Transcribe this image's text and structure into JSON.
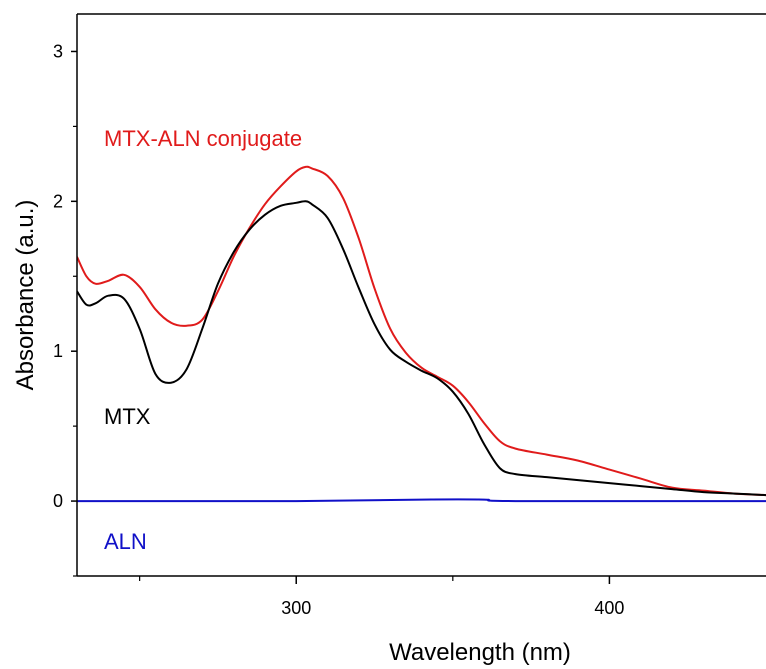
{
  "chart_data": {
    "type": "line",
    "title": "",
    "xlabel": "Wavelength (nm)",
    "ylabel": "Absorbance (a.u.)",
    "xlim": [
      230,
      450
    ],
    "ylim": [
      -0.5,
      3.25
    ],
    "x_ticks_major": [
      300,
      400
    ],
    "x_ticks_minor": [
      250,
      350
    ],
    "y_ticks_major": [
      0,
      1,
      2,
      3
    ],
    "y_ticks_minor": [
      -0.5,
      0.5,
      1.5,
      2.5
    ],
    "grid": false,
    "colors": {
      "mtx_aln": "#e01b1b",
      "mtx": "#000000",
      "aln": "#1010c8"
    },
    "series": [
      {
        "name": "MTX-ALN conjugate",
        "color": "#e01b1b",
        "x": [
          230,
          233,
          236,
          240,
          245,
          250,
          255,
          260,
          265,
          270,
          275,
          280,
          285,
          290,
          295,
          300,
          303,
          305,
          310,
          315,
          320,
          325,
          330,
          335,
          340,
          345,
          350,
          355,
          360,
          365,
          370,
          380,
          390,
          400,
          410,
          420,
          430,
          440,
          450
        ],
        "y": [
          1.63,
          1.5,
          1.45,
          1.47,
          1.51,
          1.43,
          1.28,
          1.19,
          1.17,
          1.21,
          1.4,
          1.63,
          1.82,
          1.98,
          2.1,
          2.2,
          2.23,
          2.22,
          2.17,
          2.02,
          1.75,
          1.42,
          1.15,
          0.99,
          0.89,
          0.83,
          0.77,
          0.66,
          0.52,
          0.4,
          0.35,
          0.31,
          0.27,
          0.21,
          0.15,
          0.09,
          0.07,
          0.05,
          0.04
        ]
      },
      {
        "name": "MTX",
        "color": "#000000",
        "x": [
          230,
          233,
          236,
          240,
          245,
          250,
          255,
          260,
          265,
          270,
          275,
          280,
          285,
          290,
          295,
          300,
          303,
          305,
          310,
          315,
          320,
          325,
          330,
          335,
          340,
          345,
          350,
          355,
          360,
          365,
          370,
          380,
          390,
          400,
          410,
          420,
          430,
          440,
          450
        ],
        "y": [
          1.4,
          1.31,
          1.32,
          1.37,
          1.35,
          1.15,
          0.85,
          0.79,
          0.88,
          1.15,
          1.45,
          1.66,
          1.81,
          1.91,
          1.97,
          1.99,
          2.0,
          1.98,
          1.89,
          1.68,
          1.42,
          1.18,
          1.01,
          0.93,
          0.87,
          0.82,
          0.73,
          0.58,
          0.38,
          0.22,
          0.18,
          0.16,
          0.14,
          0.12,
          0.1,
          0.08,
          0.06,
          0.05,
          0.04
        ]
      },
      {
        "name": "ALN",
        "color": "#1010c8",
        "x": [
          230,
          300,
          340,
          360,
          370,
          450
        ],
        "y": [
          0.0,
          0.0,
          0.01,
          0.01,
          0.0,
          0.0
        ]
      }
    ],
    "annotations": [
      {
        "text": "MTX-ALN conjugate",
        "color": "#e01b1b"
      },
      {
        "text": "MTX",
        "color": "#000000"
      },
      {
        "text": "ALN",
        "color": "#1010c8"
      }
    ]
  }
}
